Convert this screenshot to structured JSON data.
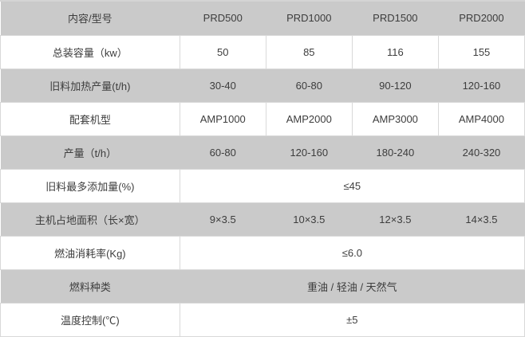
{
  "colors": {
    "row_gray": "#cacaca",
    "row_white": "#ffffff",
    "cell_border": "#d9d9d9",
    "text": "#3d3d3d"
  },
  "table": {
    "header": {
      "label": "内容/型号",
      "models": [
        "PRD500",
        "PRD1000",
        "PRD1500",
        "PRD2000"
      ]
    },
    "rows": [
      {
        "label": "总装容量（kw）",
        "values": [
          "50",
          "85",
          "116",
          "155"
        ]
      },
      {
        "label": "旧料加热产量(t/h)",
        "values": [
          "30-40",
          "60-80",
          "90-120",
          "120-160"
        ]
      },
      {
        "label": "配套机型",
        "values": [
          "AMP1000",
          "AMP2000",
          "AMP3000",
          "AMP4000"
        ]
      },
      {
        "label": "产量（t/h）",
        "values": [
          "60-80",
          "120-160",
          "180-240",
          "240-320"
        ]
      },
      {
        "label": "旧料最多添加量(%)",
        "value": "≤45"
      },
      {
        "label": "主机占地面积（长×宽）",
        "values": [
          "9×3.5",
          "10×3.5",
          "12×3.5",
          "14×3.5"
        ]
      },
      {
        "label": "燃油消耗率(Kg)",
        "value": "≤6.0"
      },
      {
        "label": "燃料种类",
        "value": "重油 / 轻油 / 天然气"
      },
      {
        "label": "温度控制(℃)",
        "value": "±5"
      }
    ]
  }
}
